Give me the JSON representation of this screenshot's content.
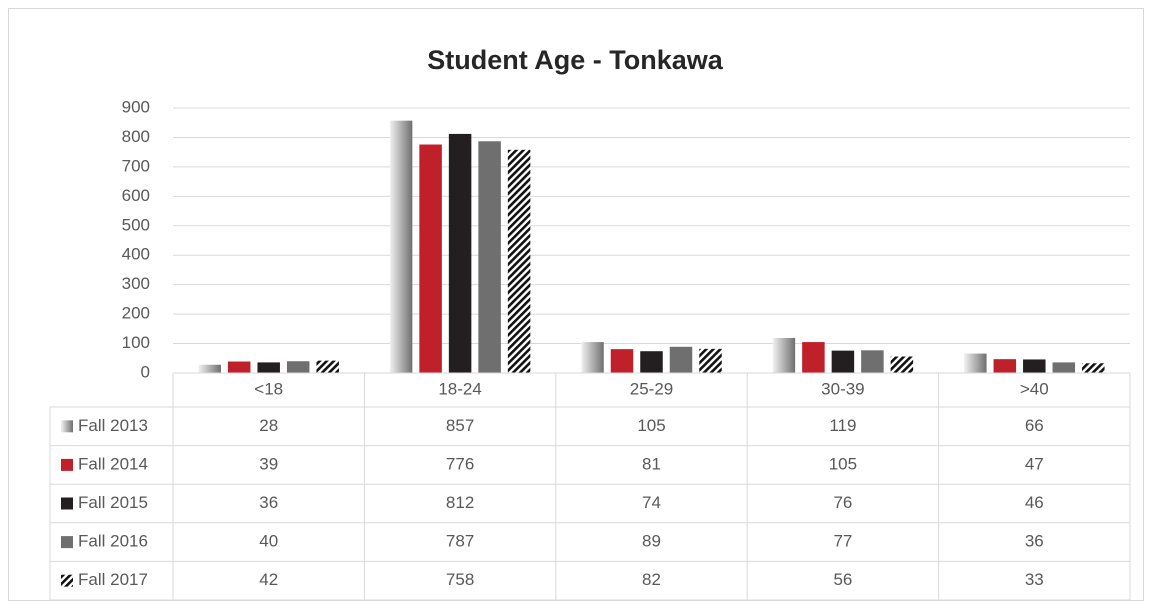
{
  "chart_data": {
    "type": "bar",
    "title": "Student Age - Tonkawa",
    "categories": [
      "<18",
      "18-24",
      "25-29",
      "30-39",
      ">40"
    ],
    "series": [
      {
        "name": "Fall 2013",
        "color": "#a6a6a6",
        "pattern": "gradient",
        "values": [
          28,
          857,
          105,
          119,
          66
        ]
      },
      {
        "name": "Fall 2014",
        "color": "#c0202a",
        "values": [
          39,
          776,
          81,
          105,
          47
        ]
      },
      {
        "name": "Fall 2015",
        "color": "#231f20",
        "values": [
          36,
          812,
          74,
          76,
          46
        ]
      },
      {
        "name": "Fall 2016",
        "color": "#6f6f6f",
        "values": [
          40,
          787,
          89,
          77,
          36
        ]
      },
      {
        "name": "Fall 2017",
        "color": "#111111",
        "pattern": "hatch",
        "values": [
          42,
          758,
          82,
          56,
          33
        ]
      }
    ],
    "ylim": [
      0,
      900
    ],
    "yticks": [
      0,
      100,
      200,
      300,
      400,
      500,
      600,
      700,
      800,
      900
    ],
    "grid": true,
    "data_table": true
  }
}
